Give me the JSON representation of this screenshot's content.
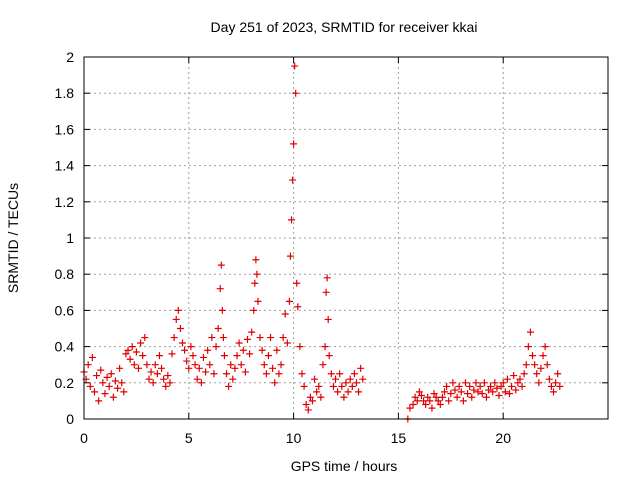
{
  "chart_data": {
    "type": "scatter",
    "title": "Day 251 of 2023, SRMTID for receiver kkai",
    "xlabel": "GPS time / hours",
    "ylabel": "SRMTID / TECUs",
    "xlim": [
      0,
      25
    ],
    "ylim": [
      0,
      2
    ],
    "xticks": [
      0,
      5,
      10,
      15,
      20
    ],
    "xtick_labels": [
      "0",
      "5",
      "10",
      "15",
      "20"
    ],
    "yticks": [
      0,
      0.2,
      0.4,
      0.6,
      0.8,
      1.0,
      1.2,
      1.4,
      1.6,
      1.8,
      2.0
    ],
    "ytick_labels": [
      "0",
      "0.2",
      "0.4",
      "0.6",
      "0.8",
      "1",
      "1.2",
      "1.4",
      "1.6",
      "1.8",
      "2"
    ],
    "grid": true,
    "marker": "+",
    "color": "#e00000",
    "series": [
      {
        "name": "SRMTID",
        "x": [
          0.0,
          0.1,
          0.2,
          0.3,
          0.4,
          0.5,
          0.6,
          0.7,
          0.8,
          0.9,
          1.0,
          1.1,
          1.2,
          1.3,
          1.4,
          1.5,
          1.6,
          1.7,
          1.8,
          1.9,
          2.0,
          2.1,
          2.2,
          2.3,
          2.4,
          2.5,
          2.6,
          2.7,
          2.8,
          2.9,
          3.0,
          3.1,
          3.2,
          3.3,
          3.4,
          3.5,
          3.6,
          3.7,
          3.8,
          3.9,
          4.0,
          4.1,
          4.2,
          4.3,
          4.4,
          4.5,
          4.6,
          4.7,
          4.8,
          4.9,
          5.0,
          5.1,
          5.2,
          5.3,
          5.4,
          5.5,
          5.6,
          5.7,
          5.8,
          5.9,
          6.0,
          6.1,
          6.2,
          6.3,
          6.4,
          6.5,
          6.55,
          6.6,
          6.65,
          6.7,
          6.8,
          6.9,
          7.0,
          7.1,
          7.2,
          7.3,
          7.4,
          7.5,
          7.6,
          7.7,
          7.8,
          7.9,
          8.0,
          8.1,
          8.15,
          8.2,
          8.25,
          8.3,
          8.4,
          8.5,
          8.6,
          8.7,
          8.8,
          8.9,
          9.0,
          9.1,
          9.2,
          9.3,
          9.4,
          9.5,
          9.6,
          9.7,
          9.8,
          9.85,
          9.9,
          9.95,
          10.0,
          10.05,
          10.1,
          10.15,
          10.2,
          10.3,
          10.4,
          10.5,
          10.6,
          10.7,
          10.8,
          10.9,
          11.0,
          11.1,
          11.2,
          11.3,
          11.4,
          11.5,
          11.55,
          11.6,
          11.65,
          11.7,
          11.8,
          11.9,
          12.0,
          12.1,
          12.2,
          12.3,
          12.4,
          12.5,
          12.6,
          12.7,
          12.8,
          12.9,
          13.0,
          13.1,
          13.2,
          13.3,
          15.45,
          15.55,
          15.7,
          15.8,
          15.9,
          16.0,
          16.1,
          16.2,
          16.3,
          16.4,
          16.5,
          16.6,
          16.7,
          16.8,
          16.9,
          17.0,
          17.1,
          17.2,
          17.3,
          17.4,
          17.5,
          17.6,
          17.7,
          17.8,
          17.9,
          18.0,
          18.1,
          18.2,
          18.3,
          18.4,
          18.5,
          18.6,
          18.7,
          18.8,
          18.9,
          19.0,
          19.1,
          19.2,
          19.3,
          19.4,
          19.5,
          19.6,
          19.7,
          19.8,
          19.9,
          20.0,
          20.1,
          20.2,
          20.3,
          20.4,
          20.5,
          20.6,
          20.7,
          20.8,
          20.9,
          21.0,
          21.1,
          21.2,
          21.3,
          21.4,
          21.5,
          21.6,
          21.7,
          21.8,
          21.9,
          22.0,
          22.1,
          22.2,
          22.3,
          22.4,
          22.5,
          22.6,
          22.7
        ],
        "y": [
          0.26,
          0.22,
          0.3,
          0.18,
          0.34,
          0.15,
          0.24,
          0.1,
          0.27,
          0.2,
          0.14,
          0.23,
          0.18,
          0.25,
          0.12,
          0.21,
          0.17,
          0.28,
          0.2,
          0.15,
          0.36,
          0.38,
          0.33,
          0.4,
          0.3,
          0.37,
          0.28,
          0.42,
          0.35,
          0.45,
          0.3,
          0.22,
          0.26,
          0.2,
          0.3,
          0.25,
          0.35,
          0.28,
          0.22,
          0.18,
          0.24,
          0.2,
          0.36,
          0.45,
          0.55,
          0.6,
          0.5,
          0.42,
          0.38,
          0.32,
          0.28,
          0.4,
          0.35,
          0.3,
          0.22,
          0.28,
          0.2,
          0.34,
          0.26,
          0.38,
          0.3,
          0.45,
          0.25,
          0.4,
          0.5,
          0.72,
          0.85,
          0.6,
          0.45,
          0.35,
          0.25,
          0.18,
          0.3,
          0.22,
          0.28,
          0.35,
          0.42,
          0.3,
          0.38,
          0.26,
          0.44,
          0.36,
          0.48,
          0.6,
          0.75,
          0.88,
          0.8,
          0.65,
          0.45,
          0.38,
          0.3,
          0.25,
          0.35,
          0.45,
          0.28,
          0.2,
          0.38,
          0.25,
          0.3,
          0.45,
          0.58,
          0.42,
          0.65,
          0.9,
          1.1,
          1.32,
          1.52,
          1.95,
          1.8,
          0.75,
          0.62,
          0.4,
          0.25,
          0.18,
          0.08,
          0.05,
          0.12,
          0.1,
          0.22,
          0.15,
          0.18,
          0.12,
          0.3,
          0.4,
          0.7,
          0.78,
          0.55,
          0.35,
          0.25,
          0.18,
          0.22,
          0.15,
          0.25,
          0.18,
          0.12,
          0.2,
          0.15,
          0.22,
          0.18,
          0.25,
          0.2,
          0.15,
          0.28,
          0.22,
          0.0,
          0.06,
          0.08,
          0.12,
          0.1,
          0.15,
          0.13,
          0.1,
          0.08,
          0.12,
          0.1,
          0.06,
          0.14,
          0.12,
          0.1,
          0.08,
          0.12,
          0.15,
          0.18,
          0.1,
          0.14,
          0.2,
          0.16,
          0.12,
          0.18,
          0.15,
          0.1,
          0.2,
          0.14,
          0.18,
          0.12,
          0.16,
          0.2,
          0.15,
          0.18,
          0.14,
          0.2,
          0.12,
          0.16,
          0.18,
          0.15,
          0.2,
          0.17,
          0.13,
          0.18,
          0.2,
          0.15,
          0.22,
          0.14,
          0.18,
          0.24,
          0.16,
          0.2,
          0.22,
          0.18,
          0.25,
          0.3,
          0.4,
          0.48,
          0.35,
          0.3,
          0.25,
          0.2,
          0.28,
          0.35,
          0.4,
          0.3,
          0.22,
          0.18,
          0.15,
          0.2,
          0.25,
          0.18
        ]
      }
    ]
  }
}
